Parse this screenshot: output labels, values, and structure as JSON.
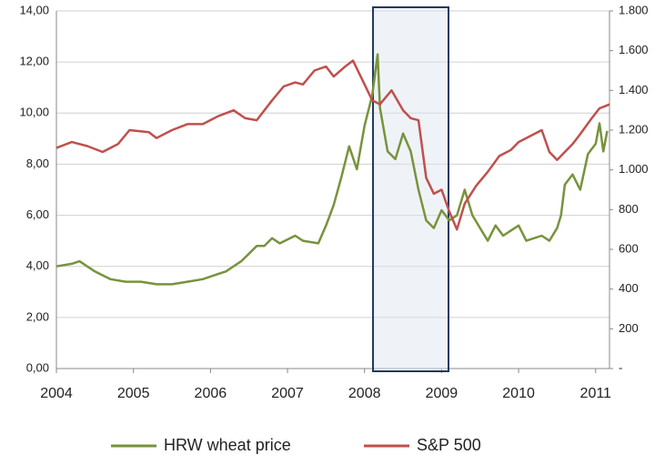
{
  "chart_data": {
    "type": "line",
    "xlim": [
      2004,
      2011.18
    ],
    "xticks": [
      2004,
      2005,
      2006,
      2007,
      2008,
      2009,
      2010,
      2011
    ],
    "ylim": [
      0,
      14
    ],
    "yticks": [
      {
        "value": 0,
        "label": "0,00"
      },
      {
        "value": 2,
        "label": "2,00"
      },
      {
        "value": 4,
        "label": "4,00"
      },
      {
        "value": 6,
        "label": "6,00"
      },
      {
        "value": 8,
        "label": "8,00"
      },
      {
        "value": 10,
        "label": "10,00"
      },
      {
        "value": 12,
        "label": "12,00"
      },
      {
        "value": 14,
        "label": "14,00"
      }
    ],
    "y2lim": [
      0,
      1800
    ],
    "y2ticks": [
      {
        "value": 0,
        "label": "-"
      },
      200,
      400,
      600,
      800,
      {
        "value": 1000,
        "label": "1.000"
      },
      {
        "value": 1200,
        "label": "1.200"
      },
      {
        "value": 1400,
        "label": "1.400"
      },
      {
        "value": 1600,
        "label": "1.600"
      },
      {
        "value": 1800,
        "label": "1.800"
      }
    ],
    "grid": true,
    "legend": "bottom",
    "highlight_xrange": [
      2008.11,
      2009.09
    ],
    "series": [
      {
        "name": "HRW wheat price",
        "color": "#77933c",
        "x": [
          2004.0,
          2004.2,
          2004.3,
          2004.5,
          2004.7,
          2004.9,
          2005.1,
          2005.3,
          2005.5,
          2005.7,
          2005.9,
          2006.1,
          2006.2,
          2006.4,
          2006.6,
          2006.7,
          2006.8,
          2006.9,
          2007.1,
          2007.2,
          2007.4,
          2007.5,
          2007.6,
          2007.7,
          2007.8,
          2007.9,
          2008.0,
          2008.1,
          2008.17,
          2008.2,
          2008.3,
          2008.4,
          2008.5,
          2008.6,
          2008.7,
          2008.8,
          2008.9,
          2009.0,
          2009.1,
          2009.2,
          2009.3,
          2009.4,
          2009.5,
          2009.6,
          2009.7,
          2009.8,
          2010.0,
          2010.1,
          2010.3,
          2010.4,
          2010.5,
          2010.55,
          2010.6,
          2010.7,
          2010.8,
          2010.9,
          2011.0,
          2011.05,
          2011.1,
          2011.15
        ],
        "values": [
          4.0,
          4.1,
          4.2,
          3.8,
          3.5,
          3.4,
          3.4,
          3.3,
          3.3,
          3.4,
          3.5,
          3.7,
          3.8,
          4.2,
          4.8,
          4.8,
          5.1,
          4.9,
          5.2,
          5.0,
          4.9,
          5.6,
          6.4,
          7.5,
          8.7,
          7.8,
          9.5,
          10.7,
          12.3,
          10.2,
          8.5,
          8.2,
          9.2,
          8.5,
          7.0,
          5.8,
          5.5,
          6.2,
          5.8,
          6.0,
          7.0,
          6.0,
          5.5,
          5.0,
          5.6,
          5.2,
          5.6,
          5.0,
          5.2,
          5.0,
          5.5,
          6.0,
          7.2,
          7.6,
          7.0,
          8.4,
          8.8,
          9.6,
          8.5,
          9.3
        ]
      },
      {
        "name": "S&P 500",
        "color": "#c0504d",
        "axis": "y2",
        "x": [
          2004.0,
          2004.2,
          2004.4,
          2004.6,
          2004.8,
          2004.95,
          2005.2,
          2005.3,
          2005.5,
          2005.7,
          2005.9,
          2006.1,
          2006.3,
          2006.45,
          2006.6,
          2006.8,
          2006.95,
          2007.1,
          2007.2,
          2007.35,
          2007.5,
          2007.6,
          2007.75,
          2007.85,
          2007.95,
          2008.1,
          2008.2,
          2008.35,
          2008.5,
          2008.6,
          2008.7,
          2008.8,
          2008.9,
          2009.0,
          2009.1,
          2009.2,
          2009.3,
          2009.45,
          2009.6,
          2009.75,
          2009.9,
          2010.0,
          2010.2,
          2010.3,
          2010.4,
          2010.5,
          2010.6,
          2010.7,
          2010.8,
          2010.95,
          2011.05,
          2011.12,
          2011.18
        ],
        "values": [
          1110,
          1140,
          1120,
          1090,
          1130,
          1200,
          1190,
          1160,
          1200,
          1230,
          1230,
          1270,
          1300,
          1260,
          1250,
          1350,
          1420,
          1440,
          1430,
          1500,
          1520,
          1470,
          1520,
          1550,
          1470,
          1350,
          1330,
          1400,
          1300,
          1260,
          1250,
          960,
          880,
          900,
          790,
          700,
          830,
          920,
          990,
          1070,
          1100,
          1140,
          1180,
          1200,
          1090,
          1050,
          1090,
          1130,
          1180,
          1260,
          1310,
          1320,
          1330
        ]
      }
    ]
  }
}
